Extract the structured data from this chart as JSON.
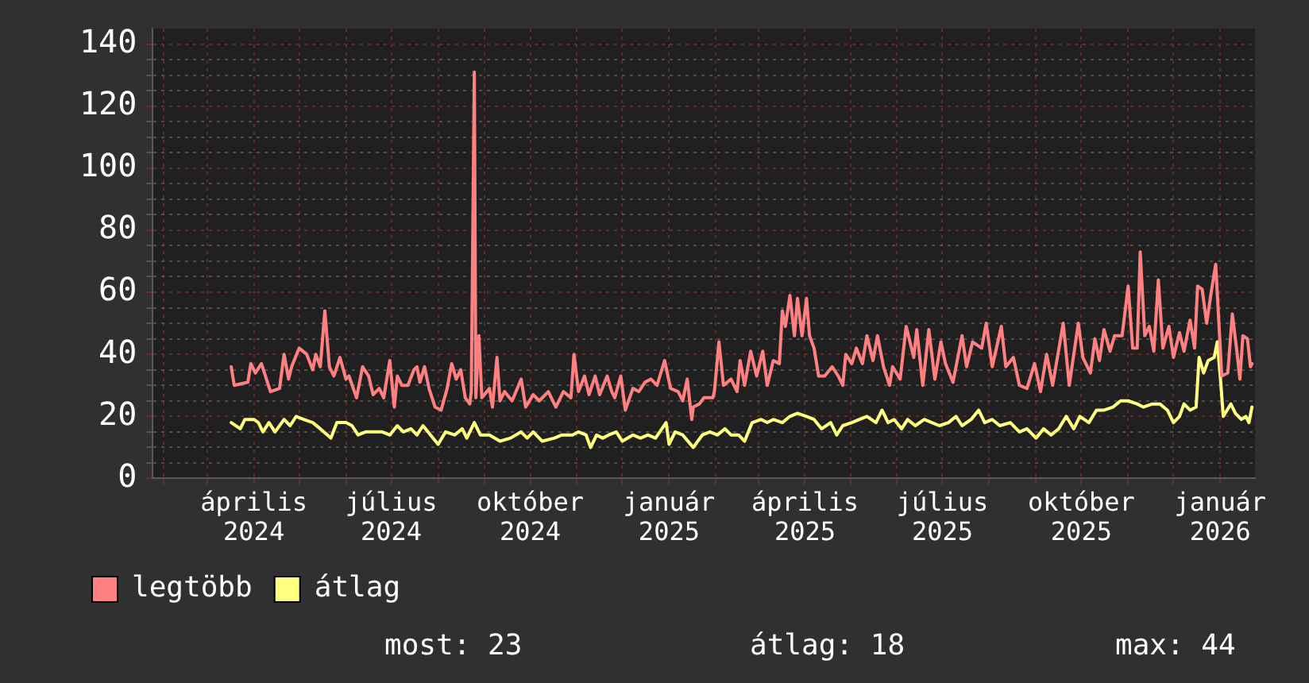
{
  "chart_data": {
    "type": "line",
    "xlim": [
      "2024-01-25",
      "2026-01-24"
    ],
    "xticks": [
      {
        "value": "2024-02-01",
        "label": null
      },
      {
        "value": "2024-03-01",
        "label": null
      },
      {
        "value": "2024-04-01",
        "label": "április 2024"
      },
      {
        "value": "2024-05-01",
        "label": null
      },
      {
        "value": "2024-06-01",
        "label": null
      },
      {
        "value": "2024-07-01",
        "label": "július 2024"
      },
      {
        "value": "2024-08-01",
        "label": null
      },
      {
        "value": "2024-09-01",
        "label": null
      },
      {
        "value": "2024-10-01",
        "label": "október 2024"
      },
      {
        "value": "2024-11-01",
        "label": null
      },
      {
        "value": "2024-12-01",
        "label": null
      },
      {
        "value": "2025-01-01",
        "label": "január 2025"
      },
      {
        "value": "2025-02-01",
        "label": null
      },
      {
        "value": "2025-03-01",
        "label": null
      },
      {
        "value": "2025-04-01",
        "label": "április 2025"
      },
      {
        "value": "2025-05-01",
        "label": null
      },
      {
        "value": "2025-06-01",
        "label": null
      },
      {
        "value": "2025-07-01",
        "label": "július 2025"
      },
      {
        "value": "2025-08-01",
        "label": null
      },
      {
        "value": "2025-09-01",
        "label": null
      },
      {
        "value": "2025-10-01",
        "label": "október 2025"
      },
      {
        "value": "2025-11-01",
        "label": null
      },
      {
        "value": "2025-12-01",
        "label": null
      },
      {
        "value": "2026-01-01",
        "label": "január 2026"
      }
    ],
    "ylim": [
      0,
      145
    ],
    "yticks": [
      0,
      {
        "value": 5,
        "label": null
      },
      {
        "value": 10,
        "label": null
      },
      {
        "value": 15,
        "label": null
      },
      20,
      {
        "value": 25,
        "label": null
      },
      {
        "value": 30,
        "label": null
      },
      {
        "value": 35,
        "label": null
      },
      40,
      {
        "value": 45,
        "label": null
      },
      {
        "value": 50,
        "label": null
      },
      {
        "value": 55,
        "label": null
      },
      60,
      {
        "value": 65,
        "label": null
      },
      {
        "value": 70,
        "label": null
      },
      {
        "value": 75,
        "label": null
      },
      80,
      {
        "value": 85,
        "label": null
      },
      {
        "value": 90,
        "label": null
      },
      {
        "value": 95,
        "label": null
      },
      100,
      {
        "value": 105,
        "label": null
      },
      {
        "value": 110,
        "label": null
      },
      {
        "value": 115,
        "label": null
      },
      120,
      {
        "value": 125,
        "label": null
      },
      {
        "value": 130,
        "label": null
      },
      {
        "value": 135,
        "label": null
      },
      140
    ],
    "grid": true,
    "legend": "bottom left",
    "marker": "none",
    "series": [
      {
        "name": "legtöbb",
        "color": "#ff8080",
        "x": [
          "2024-03-17",
          "2024-03-19",
          "2024-03-28",
          "2024-03-30",
          "2024-04-02",
          "2024-04-06",
          "2024-04-08",
          "2024-04-12",
          "2024-04-18",
          "2024-04-21",
          "2024-04-24",
          "2024-04-26",
          "2024-05-01",
          "2024-05-06",
          "2024-05-10",
          "2024-05-12",
          "2024-05-15",
          "2024-05-18",
          "2024-05-21",
          "2024-05-24",
          "2024-05-28",
          "2024-06-01",
          "2024-06-03",
          "2024-06-08",
          "2024-06-12",
          "2024-06-16",
          "2024-06-19",
          "2024-06-23",
          "2024-06-26",
          "2024-06-30",
          "2024-07-03",
          "2024-07-05",
          "2024-07-08",
          "2024-07-12",
          "2024-07-16",
          "2024-07-18",
          "2024-07-20",
          "2024-07-23",
          "2024-07-26",
          "2024-07-30",
          "2024-08-03",
          "2024-08-07",
          "2024-08-10",
          "2024-08-13",
          "2024-08-16",
          "2024-08-19",
          "2024-08-22",
          "2024-08-23",
          "2024-08-25",
          "2024-08-26",
          "2024-08-28",
          "2024-08-30",
          "2024-09-04",
          "2024-09-06",
          "2024-09-09",
          "2024-09-11",
          "2024-09-14",
          "2024-09-19",
          "2024-09-25",
          "2024-09-28",
          "2024-10-03",
          "2024-10-07",
          "2024-10-13",
          "2024-10-18",
          "2024-10-23",
          "2024-10-28",
          "2024-10-30",
          "2024-11-02",
          "2024-11-06",
          "2024-11-09",
          "2024-11-13",
          "2024-11-16",
          "2024-11-21",
          "2024-11-24",
          "2024-11-26",
          "2024-11-30",
          "2024-12-03",
          "2024-12-08",
          "2024-12-12",
          "2024-12-16",
          "2024-12-20",
          "2024-12-24",
          "2024-12-29",
          "2025-01-02",
          "2025-01-07",
          "2025-01-10",
          "2025-01-13",
          "2025-01-16",
          "2025-01-17",
          "2025-01-21",
          "2025-01-24",
          "2025-01-30",
          "2025-01-31",
          "2025-02-03",
          "2025-02-06",
          "2025-02-11",
          "2025-02-15",
          "2025-02-17",
          "2025-02-20",
          "2025-02-24",
          "2025-02-28",
          "2025-03-04",
          "2025-03-07",
          "2025-03-11",
          "2025-03-15",
          "2025-03-17",
          "2025-03-19",
          "2025-03-22",
          "2025-03-25",
          "2025-03-27",
          "2025-03-30",
          "2025-04-02",
          "2025-04-04",
          "2025-04-07",
          "2025-04-10",
          "2025-04-14",
          "2025-04-19",
          "2025-04-23",
          "2025-04-26",
          "2025-04-28",
          "2025-05-02",
          "2025-05-05",
          "2025-05-09",
          "2025-05-12",
          "2025-05-16",
          "2025-05-19",
          "2025-05-23",
          "2025-05-27",
          "2025-05-29",
          "2025-06-03",
          "2025-06-07",
          "2025-06-12",
          "2025-06-14",
          "2025-06-18",
          "2025-06-22",
          "2025-06-26",
          "2025-06-30",
          "2025-07-03",
          "2025-07-08",
          "2025-07-14",
          "2025-07-17",
          "2025-07-21",
          "2025-07-27",
          "2025-07-30",
          "2025-08-03",
          "2025-08-09",
          "2025-08-12",
          "2025-08-17",
          "2025-08-21",
          "2025-08-26",
          "2025-08-31",
          "2025-09-04",
          "2025-09-08",
          "2025-09-12",
          "2025-09-19",
          "2025-09-23",
          "2025-09-29",
          "2025-10-02",
          "2025-10-07",
          "2025-10-10",
          "2025-10-13",
          "2025-10-16",
          "2025-10-20",
          "2025-10-23",
          "2025-10-28",
          "2025-11-01",
          "2025-11-04",
          "2025-11-07",
          "2025-11-09",
          "2025-11-12",
          "2025-11-15",
          "2025-11-18",
          "2025-11-21",
          "2025-11-24",
          "2025-11-28",
          "2025-12-01",
          "2025-12-05",
          "2025-12-08",
          "2025-12-12",
          "2025-12-15",
          "2025-12-17",
          "2025-12-20",
          "2025-12-23",
          "2025-12-26",
          "2025-12-29",
          "2026-01-02",
          "2026-01-06",
          "2026-01-09",
          "2026-01-12",
          "2026-01-14",
          "2026-01-16",
          "2026-01-19",
          "2026-01-21",
          "2026-01-22"
        ],
        "values": [
          36,
          30,
          31,
          37,
          34,
          37,
          34,
          28,
          29,
          40,
          32,
          36,
          42,
          40,
          35,
          40,
          36,
          54,
          36,
          33,
          39,
          32,
          33,
          26,
          36,
          33,
          27,
          29,
          26,
          38,
          23,
          33,
          30,
          30,
          35,
          36,
          31,
          36,
          29,
          23,
          22,
          29,
          37,
          32,
          35,
          26,
          24,
          28,
          131,
          26,
          46,
          26,
          29,
          23,
          39,
          25,
          28,
          25,
          32,
          23,
          27,
          25,
          28,
          23,
          28,
          26,
          40,
          28,
          33,
          27,
          33,
          27,
          33,
          28,
          26,
          33,
          22,
          29,
          28,
          31,
          32,
          30,
          38,
          29,
          28,
          25,
          32,
          19,
          23,
          24,
          26,
          26,
          28,
          44,
          30,
          32,
          28,
          38,
          30,
          41,
          33,
          41,
          30,
          38,
          37,
          54,
          49,
          59,
          46,
          58,
          46,
          58,
          46,
          42,
          33,
          33,
          36,
          33,
          30,
          40,
          37,
          42,
          37,
          46,
          38,
          46,
          36,
          30,
          36,
          32,
          49,
          39,
          48,
          30,
          48,
          32,
          44,
          37,
          31,
          46,
          36,
          44,
          42,
          50,
          36,
          49,
          36,
          39,
          30,
          29,
          37,
          28,
          40,
          30,
          50,
          30,
          50,
          39,
          34,
          45,
          38,
          48,
          41,
          46,
          46,
          62,
          42,
          42,
          73,
          46,
          49,
          41,
          64,
          42,
          49,
          39,
          47,
          41,
          51,
          42,
          62,
          61,
          50,
          60,
          69,
          33,
          34,
          53,
          41,
          32,
          46,
          45,
          36,
          37
        ]
      },
      {
        "name": "átlag",
        "color": "#ffff80",
        "x": [
          "2024-03-17",
          "2024-03-23",
          "2024-03-26",
          "2024-04-01",
          "2024-04-04",
          "2024-04-07",
          "2024-04-11",
          "2024-04-15",
          "2024-04-21",
          "2024-04-25",
          "2024-04-29",
          "2024-05-04",
          "2024-05-10",
          "2024-05-15",
          "2024-05-22",
          "2024-05-26",
          "2024-06-01",
          "2024-06-05",
          "2024-06-09",
          "2024-06-14",
          "2024-06-19",
          "2024-06-25",
          "2024-06-30",
          "2024-07-05",
          "2024-07-09",
          "2024-07-14",
          "2024-07-18",
          "2024-07-22",
          "2024-07-27",
          "2024-08-01",
          "2024-08-06",
          "2024-08-12",
          "2024-08-17",
          "2024-08-20",
          "2024-08-25",
          "2024-08-29",
          "2024-09-04",
          "2024-09-11",
          "2024-09-18",
          "2024-09-25",
          "2024-09-29",
          "2024-10-03",
          "2024-10-09",
          "2024-10-17",
          "2024-10-22",
          "2024-10-29",
          "2024-11-02",
          "2024-11-07",
          "2024-11-10",
          "2024-11-14",
          "2024-11-18",
          "2024-11-22",
          "2024-11-27",
          "2024-12-01",
          "2024-12-08",
          "2024-12-13",
          "2024-12-18",
          "2024-12-23",
          "2024-12-30",
          "2025-01-01",
          "2025-01-05",
          "2025-01-10",
          "2025-01-17",
          "2025-01-23",
          "2025-01-28",
          "2025-02-02",
          "2025-02-07",
          "2025-02-11",
          "2025-02-16",
          "2025-02-20",
          "2025-02-25",
          "2025-03-03",
          "2025-03-07",
          "2025-03-11",
          "2025-03-17",
          "2025-03-22",
          "2025-03-27",
          "2025-04-02",
          "2025-04-07",
          "2025-04-12",
          "2025-04-18",
          "2025-04-22",
          "2025-04-26",
          "2025-05-02",
          "2025-05-07",
          "2025-05-12",
          "2025-05-18",
          "2025-05-22",
          "2025-05-26",
          "2025-05-30",
          "2025-06-04",
          "2025-06-08",
          "2025-06-13",
          "2025-06-19",
          "2025-06-24",
          "2025-06-29",
          "2025-07-05",
          "2025-07-10",
          "2025-07-14",
          "2025-07-20",
          "2025-07-25",
          "2025-07-29",
          "2025-08-03",
          "2025-08-08",
          "2025-08-15",
          "2025-08-21",
          "2025-08-26",
          "2025-09-01",
          "2025-09-06",
          "2025-09-11",
          "2025-09-16",
          "2025-09-21",
          "2025-09-26",
          "2025-09-30",
          "2025-10-06",
          "2025-10-11",
          "2025-10-16",
          "2025-10-22",
          "2025-10-27",
          "2025-11-01",
          "2025-11-07",
          "2025-11-11",
          "2025-11-17",
          "2025-11-22",
          "2025-11-27",
          "2025-12-01",
          "2025-12-05",
          "2025-12-08",
          "2025-12-12",
          "2025-12-16",
          "2025-12-18",
          "2025-12-21",
          "2025-12-24",
          "2025-12-28",
          "2025-12-30",
          "2026-01-01",
          "2026-01-03",
          "2026-01-08",
          "2026-01-11",
          "2026-01-15",
          "2026-01-18",
          "2026-01-20",
          "2026-01-22"
        ],
        "values": [
          18,
          16,
          19,
          19,
          18,
          15,
          18,
          15,
          19,
          17,
          20,
          19,
          18,
          16,
          13,
          18,
          18,
          17,
          14,
          15,
          15,
          15,
          14,
          17,
          15,
          16,
          14,
          17,
          14,
          11,
          15,
          14,
          16,
          13,
          18,
          14,
          14,
          12,
          13,
          15,
          13,
          15,
          12,
          13,
          14,
          14,
          15,
          14,
          10,
          14,
          13,
          14,
          15,
          12,
          14,
          13,
          14,
          13,
          18,
          11,
          15,
          14,
          10,
          14,
          15,
          14,
          16,
          14,
          14,
          12,
          18,
          19,
          18,
          19,
          18,
          20,
          21,
          20,
          19,
          16,
          18,
          14,
          17,
          18,
          19,
          20,
          18,
          22,
          18,
          19,
          16,
          19,
          17,
          19,
          18,
          17,
          18,
          20,
          17,
          19,
          22,
          18,
          19,
          17,
          18,
          15,
          16,
          13,
          16,
          14,
          16,
          20,
          16,
          20,
          18,
          22,
          22,
          23,
          25,
          25,
          24,
          23,
          24,
          24,
          22,
          18,
          20,
          24,
          22,
          23,
          39,
          34,
          38,
          39,
          44,
          33,
          20,
          24,
          21,
          19,
          20,
          18,
          23
        ]
      }
    ],
    "annotations": [
      "most: 23",
      "átlag: 18",
      "max: 44"
    ]
  }
}
